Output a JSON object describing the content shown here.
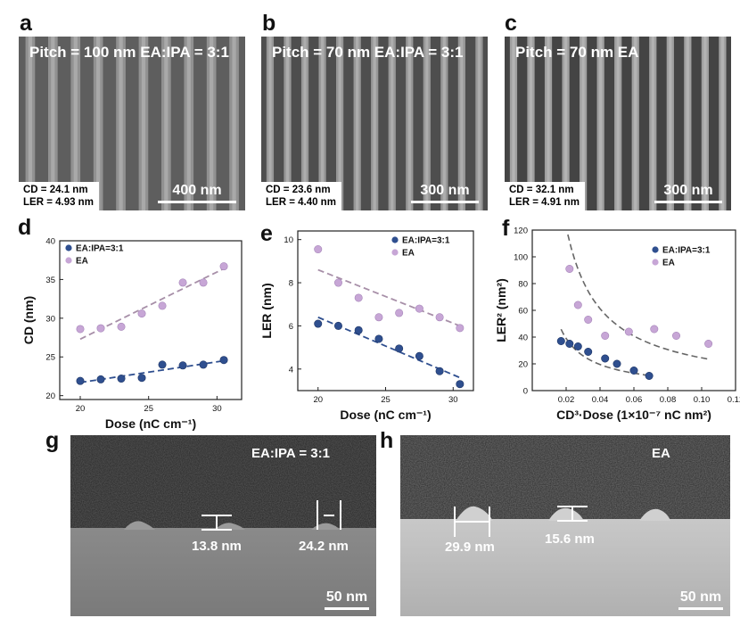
{
  "panels": {
    "a": {
      "letter": "a",
      "title": "Pitch = 100 nm EA:IPA = 3:1",
      "cd": "CD = 24.1 nm",
      "ler": "LER = 4.93 nm",
      "scalebar": "400 nm",
      "lines": 10,
      "bg": "#5e5e5e",
      "line_color": "#9a9a9a"
    },
    "b": {
      "letter": "b",
      "title": "Pitch = 70 nm EA:IPA = 3:1",
      "cd": "CD = 23.6 nm",
      "ler": "LER = 4.40 nm",
      "scalebar": "300 nm",
      "lines": 13,
      "bg": "#4e4e4e",
      "line_color": "#a5a5a5"
    },
    "c": {
      "letter": "c",
      "title": "Pitch = 70 nm EA",
      "cd": "CD = 32.1 nm",
      "ler": "LER = 4.91 nm",
      "scalebar": "300 nm",
      "lines": 13,
      "bg": "#444444",
      "line_color": "#b0b0b0"
    },
    "g": {
      "letter": "g",
      "title": "EA:IPA = 3:1",
      "height_label": "13.8 nm",
      "width_label": "24.2 nm",
      "scalebar": "50 nm"
    },
    "h": {
      "letter": "h",
      "title": "EA",
      "width_label": "29.9 nm",
      "height_label": "15.6 nm",
      "scalebar": "50 nm"
    }
  },
  "colors": {
    "ea_ipa": "#2f4f8f",
    "ea": "#c7a6d6",
    "ea_ipa_fit": "#2f4f8f",
    "ea_fit": "#a78fa8"
  },
  "chart_data": [
    {
      "id": "d",
      "letter": "d",
      "type": "scatter",
      "xlabel": "Dose (nC cm⁻¹)",
      "ylabel": "CD (nm)",
      "xlim": [
        18.5,
        31.8
      ],
      "ylim": [
        19.5,
        40
      ],
      "xticks": [
        20,
        25,
        30
      ],
      "yticks": [
        20,
        25,
        30,
        35,
        40
      ],
      "legend_pos": "top-left",
      "series": [
        {
          "name": "EA:IPA=3:1",
          "x": [
            20,
            21.5,
            23,
            24.5,
            26,
            27.5,
            29,
            30.5
          ],
          "y": [
            21.9,
            22.1,
            22.2,
            22.3,
            24.0,
            23.9,
            24.0,
            24.6
          ],
          "fit": [
            [
              20,
              21.7
            ],
            [
              30.5,
              24.5
            ]
          ]
        },
        {
          "name": "EA",
          "x": [
            20,
            21.5,
            23,
            24.5,
            26,
            27.5,
            29,
            30.5
          ],
          "y": [
            28.6,
            28.7,
            28.9,
            30.6,
            31.6,
            34.6,
            34.6,
            36.7
          ],
          "fit": [
            [
              20,
              27.3
            ],
            [
              30.5,
              36.4
            ]
          ]
        }
      ]
    },
    {
      "id": "e",
      "letter": "e",
      "type": "scatter",
      "xlabel": "Dose (nC cm⁻¹)",
      "ylabel": "LER (nm)",
      "xlim": [
        18.5,
        31.5
      ],
      "ylim": [
        3,
        10.4
      ],
      "xticks": [
        20,
        25,
        30
      ],
      "yticks": [
        4,
        6,
        8,
        10
      ],
      "legend_pos": "top-right",
      "series": [
        {
          "name": "EA:IPA=3:1",
          "x": [
            20,
            21.5,
            23,
            24.5,
            26,
            27.5,
            29,
            30.5
          ],
          "y": [
            6.1,
            6.0,
            5.8,
            5.4,
            4.95,
            4.6,
            3.9,
            3.3
          ],
          "fit": [
            [
              20,
              6.4
            ],
            [
              30.5,
              3.6
            ]
          ]
        },
        {
          "name": "EA",
          "x": [
            20,
            21.5,
            23,
            24.5,
            26,
            27.5,
            29,
            30.5
          ],
          "y": [
            9.55,
            8.0,
            7.3,
            6.4,
            6.6,
            6.8,
            6.4,
            5.9
          ],
          "fit": [
            [
              20,
              8.6
            ],
            [
              30.5,
              6.0
            ]
          ]
        }
      ]
    },
    {
      "id": "f",
      "letter": "f",
      "type": "scatter",
      "xlabel": "CD³·Dose (1×10⁻⁷ nC nm²)",
      "ylabel": "LER² (nm²)",
      "xlim": [
        0,
        0.12
      ],
      "ylim": [
        0,
        120
      ],
      "xticks": [
        0.02,
        0.04,
        0.06,
        0.08,
        0.1,
        0.12
      ],
      "yticks": [
        0,
        20,
        40,
        60,
        80,
        100,
        120
      ],
      "legend_pos": "top-right",
      "series": [
        {
          "name": "EA:IPA=3:1",
          "x": [
            0.017,
            0.022,
            0.027,
            0.033,
            0.043,
            0.05,
            0.06,
            0.069
          ],
          "y": [
            37,
            35,
            33,
            29,
            24,
            20,
            15,
            11
          ],
          "fit_k": 0.78
        },
        {
          "name": "EA",
          "x": [
            0.022,
            0.027,
            0.033,
            0.043,
            0.057,
            0.072,
            0.085,
            0.104
          ],
          "y": [
            91,
            64,
            53,
            41,
            44,
            46,
            41,
            35
          ],
          "fit_k": 2.45
        }
      ]
    }
  ]
}
